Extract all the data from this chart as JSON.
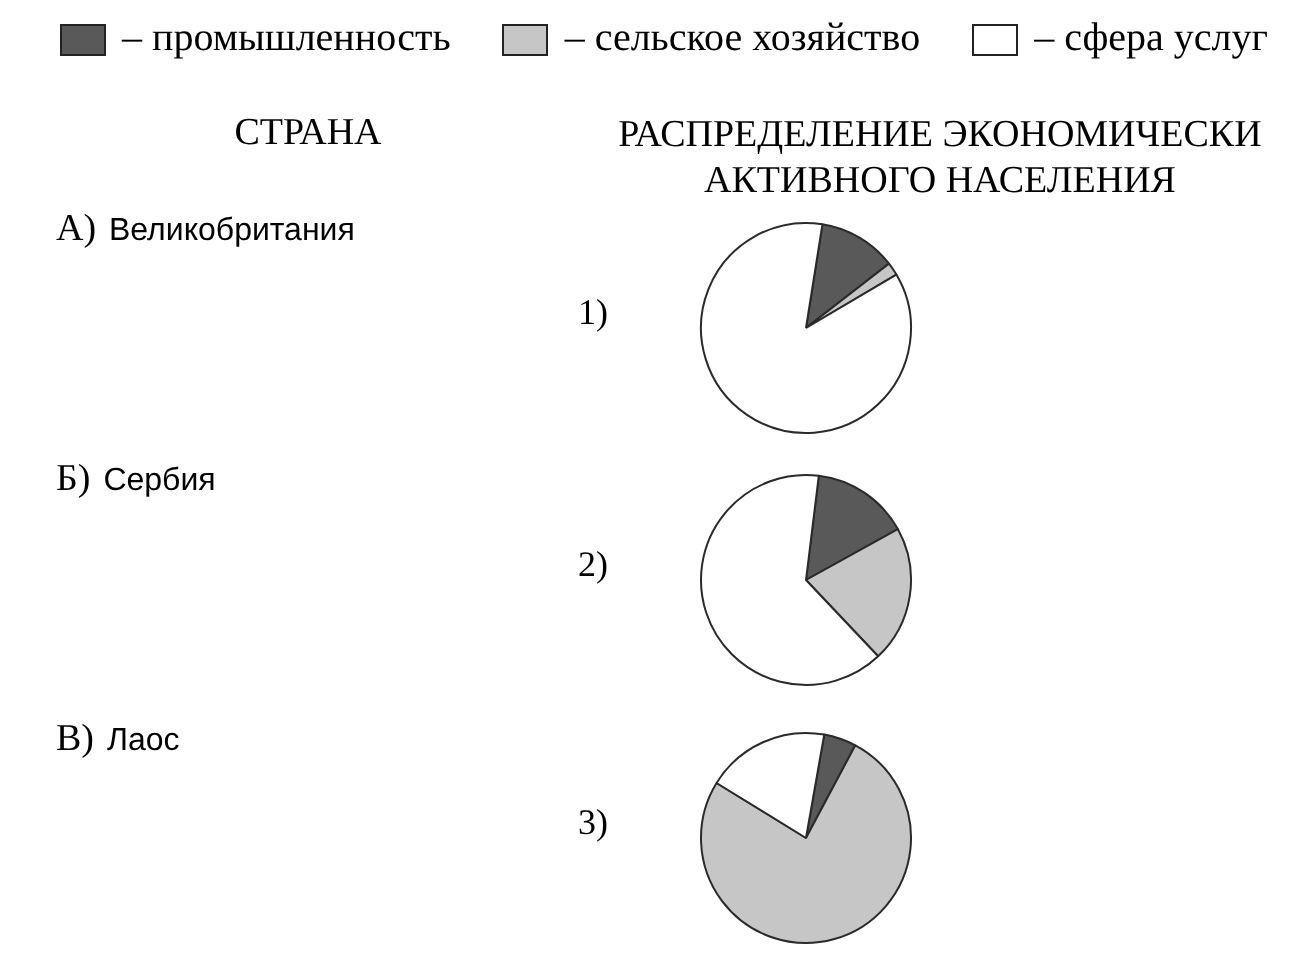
{
  "chart_data": [
    {
      "type": "other",
      "title": "СТРАНА",
      "annotations": [
        "А) Великобритания",
        "Б) Сербия",
        "В) Лаос"
      ]
    },
    {
      "type": "pie",
      "title": "РАСПРЕДЕЛЕНИЕ ЭКОНОМИЧЕСКИ АКТИВНОГО НАСЕЛЕНИЯ",
      "categories": [
        "– промышленность",
        "– сельское хозяйство",
        "– сфера услуг"
      ],
      "values": [
        12,
        2,
        86
      ],
      "colors": [
        "#595959",
        "#c6c6c6",
        "#ffffff"
      ],
      "legend": "top",
      "annotations": [
        "1)"
      ]
    },
    {
      "type": "pie",
      "categories": [
        null,
        null,
        null
      ],
      "values": [
        15,
        21,
        64
      ],
      "colors": [
        "#595959",
        "#c6c6c6",
        "#ffffff"
      ],
      "annotations": [
        "2)"
      ]
    },
    {
      "type": "pie",
      "categories": [
        null,
        null,
        null
      ],
      "values": [
        5,
        76,
        19
      ],
      "colors": [
        "#595959",
        "#c6c6c6",
        "#ffffff"
      ],
      "annotations": [
        "3)"
      ]
    }
  ]
}
